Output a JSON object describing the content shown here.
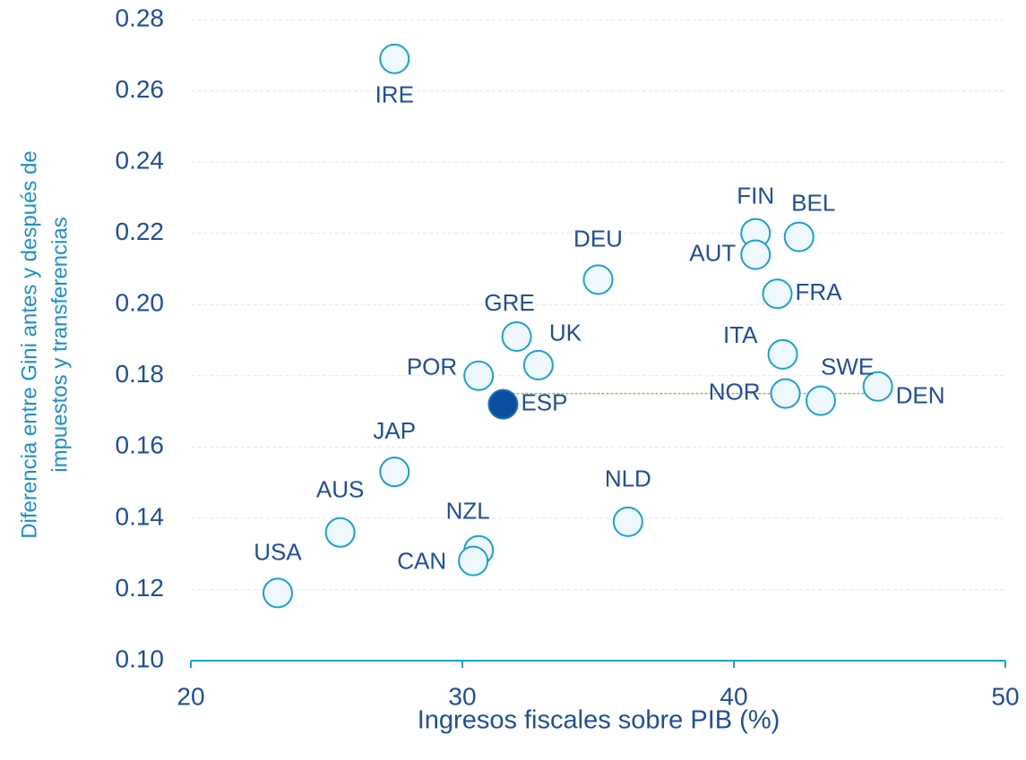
{
  "chart_data": {
    "type": "scatter",
    "xlabel": "Ingresos fiscales sobre PIB (%)",
    "ylabel": [
      "Diferencia entre Gini antes y después de",
      "impuestos y transferencias"
    ],
    "labels": [
      "IRE",
      "FIN",
      "BEL",
      "AUT",
      "DEU",
      "FRA",
      "GRE",
      "ITA",
      "UK",
      "POR",
      "DEN",
      "NOR",
      "SWE",
      "ESP",
      "JAP",
      "NLD",
      "AUS",
      "NZL",
      "CAN",
      "USA"
    ],
    "x": [
      27.5,
      40.8,
      42.4,
      40.8,
      35.0,
      41.6,
      32.0,
      41.8,
      32.8,
      30.6,
      45.3,
      41.9,
      43.2,
      31.5,
      27.5,
      36.1,
      25.5,
      30.6,
      30.4,
      23.2
    ],
    "values": [
      0.269,
      0.22,
      0.219,
      0.214,
      0.207,
      0.203,
      0.191,
      0.186,
      0.183,
      0.18,
      0.177,
      0.175,
      0.173,
      0.172,
      0.153,
      0.139,
      0.136,
      0.131,
      0.128,
      0.119
    ],
    "color": "#eef8fd",
    "edge_color": "#1aa0d8",
    "highlight": "ESP",
    "highlight_color": "#0b4f9e",
    "reference_line": {
      "x": [
        31.5,
        45.2
      ],
      "y": 0.175,
      "color": "#8cc63f"
    },
    "xlim": [
      20,
      50
    ],
    "xticks": [
      20,
      30,
      40,
      50
    ],
    "ylim": [
      0.1,
      0.28
    ],
    "yticks": [
      {
        "value": 0.1,
        "label": "0.10"
      },
      0.12,
      0.14,
      0.16,
      0.18,
      {
        "value": 0.2,
        "label": "0.20"
      },
      0.22,
      0.24,
      0.26,
      0.28
    ],
    "grid": true
  }
}
